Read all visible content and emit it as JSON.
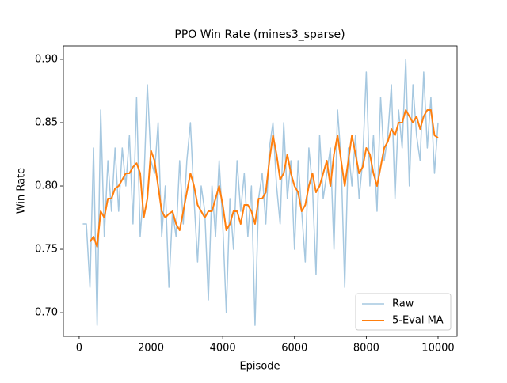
{
  "chart_data": {
    "type": "line",
    "title": "PPO Win Rate (mines3_sparse)",
    "x_label": "Episode",
    "y_label": "Win Rate",
    "xlim": [
      -440,
      10530
    ],
    "ylim": [
      0.6813,
      0.9106
    ],
    "xticks": [
      0,
      2000,
      4000,
      6000,
      8000,
      10000
    ],
    "yticks": [
      {
        "value": 0.7,
        "label": "0.70"
      },
      0.75,
      {
        "value": 0.8,
        "label": "0.80"
      },
      0.85,
      {
        "value": 0.9,
        "label": "0.90"
      }
    ],
    "legend": "lower right",
    "series": [
      {
        "name": "Raw",
        "color": "#a6c8e0",
        "x": [
          100,
          200,
          300,
          400,
          500,
          600,
          700,
          800,
          900,
          1000,
          1100,
          1200,
          1300,
          1400,
          1500,
          1600,
          1700,
          1800,
          1900,
          2000,
          2100,
          2200,
          2300,
          2400,
          2500,
          2600,
          2700,
          2800,
          2900,
          3000,
          3100,
          3200,
          3300,
          3400,
          3500,
          3600,
          3700,
          3800,
          3900,
          4000,
          4100,
          4200,
          4300,
          4400,
          4500,
          4600,
          4700,
          4800,
          4900,
          5000,
          5100,
          5200,
          5300,
          5400,
          5500,
          5600,
          5700,
          5800,
          5900,
          6000,
          6100,
          6200,
          6300,
          6400,
          6500,
          6600,
          6700,
          6800,
          6900,
          7000,
          7100,
          7200,
          7300,
          7400,
          7500,
          7600,
          7700,
          7800,
          7900,
          8000,
          8100,
          8200,
          8300,
          8400,
          8500,
          8600,
          8700,
          8800,
          8900,
          9000,
          9100,
          9200,
          9300,
          9400,
          9500,
          9600,
          9700,
          9800,
          9900,
          10000
        ],
        "values": [
          0.77,
          0.77,
          0.72,
          0.83,
          0.69,
          0.86,
          0.76,
          0.82,
          0.78,
          0.83,
          0.78,
          0.83,
          0.8,
          0.84,
          0.77,
          0.87,
          0.76,
          0.8,
          0.88,
          0.82,
          0.81,
          0.85,
          0.76,
          0.8,
          0.72,
          0.78,
          0.76,
          0.82,
          0.77,
          0.82,
          0.85,
          0.79,
          0.74,
          0.8,
          0.78,
          0.71,
          0.8,
          0.76,
          0.82,
          0.77,
          0.7,
          0.79,
          0.75,
          0.82,
          0.78,
          0.81,
          0.76,
          0.8,
          0.69,
          0.79,
          0.81,
          0.77,
          0.83,
          0.85,
          0.8,
          0.77,
          0.85,
          0.79,
          0.82,
          0.75,
          0.82,
          0.78,
          0.74,
          0.83,
          0.8,
          0.73,
          0.84,
          0.79,
          0.81,
          0.83,
          0.75,
          0.86,
          0.82,
          0.72,
          0.83,
          0.8,
          0.84,
          0.79,
          0.82,
          0.89,
          0.8,
          0.84,
          0.78,
          0.87,
          0.82,
          0.84,
          0.88,
          0.79,
          0.86,
          0.83,
          0.9,
          0.8,
          0.88,
          0.84,
          0.82,
          0.89,
          0.83,
          0.87,
          0.81,
          0.85
        ]
      },
      {
        "name": "5-Eval MA",
        "color": "#ff7f0e",
        "x": [
          300,
          400,
          500,
          600,
          700,
          800,
          900,
          1000,
          1100,
          1200,
          1300,
          1400,
          1500,
          1600,
          1700,
          1800,
          1900,
          2000,
          2100,
          2200,
          2300,
          2400,
          2500,
          2600,
          2700,
          2800,
          2900,
          3000,
          3100,
          3200,
          3300,
          3400,
          3500,
          3600,
          3700,
          3800,
          3900,
          4000,
          4100,
          4200,
          4300,
          4400,
          4500,
          4600,
          4700,
          4800,
          4900,
          5000,
          5100,
          5200,
          5300,
          5400,
          5500,
          5600,
          5700,
          5800,
          5900,
          6000,
          6100,
          6200,
          6300,
          6400,
          6500,
          6600,
          6700,
          6800,
          6900,
          7000,
          7100,
          7200,
          7300,
          7400,
          7500,
          7600,
          7700,
          7800,
          7900,
          8000,
          8100,
          8200,
          8300,
          8400,
          8500,
          8600,
          8700,
          8800,
          8900,
          9000,
          9100,
          9200,
          9300,
          9400,
          9500,
          9600,
          9700,
          9800,
          9900,
          10000
        ],
        "values": [
          0.756,
          0.76,
          0.752,
          0.78,
          0.775,
          0.79,
          0.79,
          0.798,
          0.8,
          0.805,
          0.81,
          0.81,
          0.815,
          0.818,
          0.81,
          0.775,
          0.79,
          0.828,
          0.82,
          0.8,
          0.78,
          0.775,
          0.778,
          0.78,
          0.77,
          0.765,
          0.78,
          0.795,
          0.81,
          0.8,
          0.785,
          0.78,
          0.775,
          0.78,
          0.78,
          0.79,
          0.8,
          0.785,
          0.765,
          0.77,
          0.78,
          0.78,
          0.77,
          0.785,
          0.785,
          0.78,
          0.77,
          0.79,
          0.79,
          0.795,
          0.82,
          0.84,
          0.825,
          0.805,
          0.81,
          0.825,
          0.81,
          0.8,
          0.795,
          0.78,
          0.785,
          0.8,
          0.81,
          0.795,
          0.8,
          0.81,
          0.82,
          0.8,
          0.825,
          0.84,
          0.82,
          0.8,
          0.82,
          0.84,
          0.825,
          0.81,
          0.815,
          0.83,
          0.825,
          0.81,
          0.8,
          0.815,
          0.83,
          0.835,
          0.845,
          0.84,
          0.85,
          0.85,
          0.86,
          0.855,
          0.85,
          0.855,
          0.845,
          0.855,
          0.86,
          0.86,
          0.84,
          0.838
        ]
      }
    ]
  }
}
